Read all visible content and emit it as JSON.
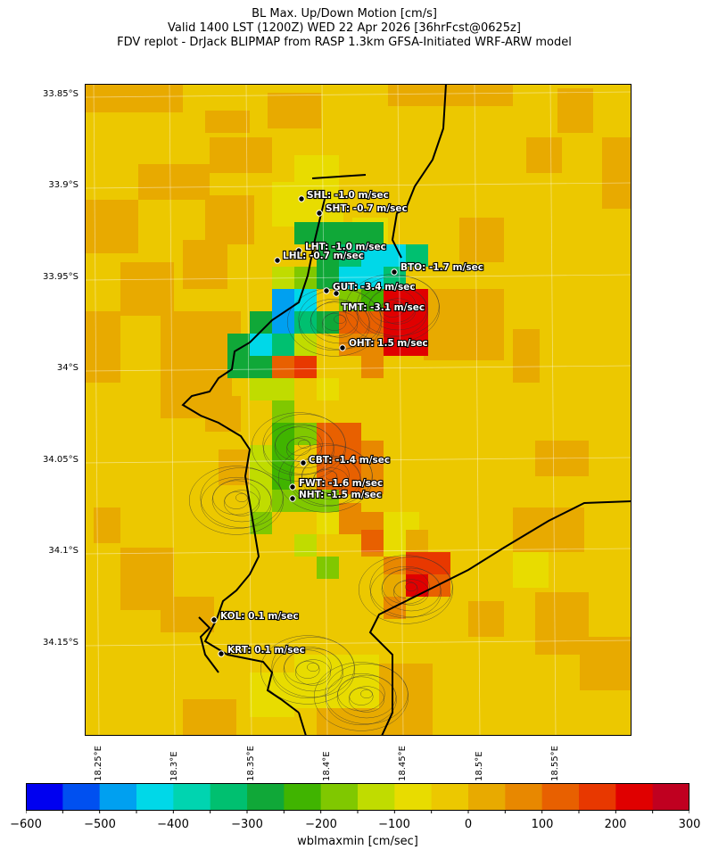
{
  "title": {
    "line1": "BL Max. Up/Down Motion [cm/s]",
    "line2": "Valid 1400 LST (1200Z) WED 22 Apr 2026 [36hrFcst@0625z]",
    "line3": "FDV replot - DrJack BLIPMAP from RASP 1.3km GFSA-Initiated WRF-ARW model"
  },
  "lat_labels": [
    "33.85°S",
    "33.9°S",
    "33.95°S",
    "34°S",
    "34.05°S",
    "34.1°S",
    "34.15°S"
  ],
  "lon_labels": [
    "18.25°E",
    "18.3°E",
    "18.35°E",
    "18.4°E",
    "18.45°E",
    "18.5°E",
    "18.55°E"
  ],
  "stations": [
    {
      "code": "SHL",
      "label": "SHL: -1.0 m/sec"
    },
    {
      "code": "SHT",
      "label": "SHT: -0.7 m/sec"
    },
    {
      "code": "LHT",
      "label": "LHT: -1.0 m/sec"
    },
    {
      "code": "LHL",
      "label": "LHL: -0.7 m/sec"
    },
    {
      "code": "BTO",
      "label": "BTO: -1.7 m/sec"
    },
    {
      "code": "GUT",
      "label": "GUT: -3.4 m/sec"
    },
    {
      "code": "TMT",
      "label": "TMT: -3.1 m/sec"
    },
    {
      "code": "OHT",
      "label": "OHT: 1.5 m/sec"
    },
    {
      "code": "CBT",
      "label": "CBT: -1.4 m/sec"
    },
    {
      "code": "FWT",
      "label": "FWT: -1.6 m/sec"
    },
    {
      "code": "NHT",
      "label": "NHT: -1.5 m/sec"
    },
    {
      "code": "KOL",
      "label": "KOL: 0.1 m/sec"
    },
    {
      "code": "KRT",
      "label": "KRT: 0.1 m/sec"
    }
  ],
  "colorbar": {
    "label": "wblmaxmin [cm/sec]",
    "ticks": [
      "−600",
      "−500",
      "−400",
      "−300",
      "−200",
      "−100",
      "0",
      "100",
      "200",
      "300"
    ],
    "colors": [
      "#0000f0",
      "#0050f0",
      "#00a0f0",
      "#00d8e8",
      "#00d4b0",
      "#00c070",
      "#10a838",
      "#40b400",
      "#80c800",
      "#c0dc00",
      "#e8dc00",
      "#ecc800",
      "#e8aa00",
      "#e88800",
      "#e86000",
      "#e83800",
      "#e00000",
      "#c00020"
    ]
  }
}
